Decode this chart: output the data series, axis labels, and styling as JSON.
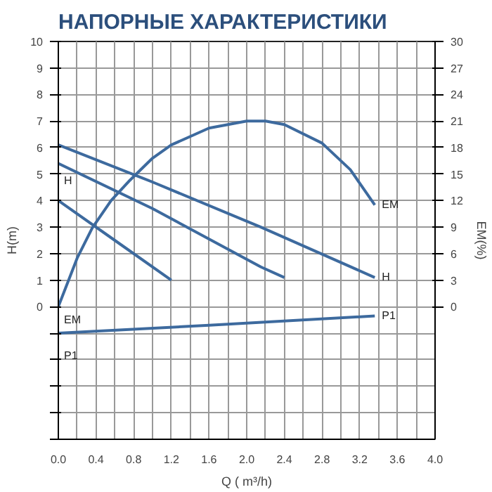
{
  "chart_data": {
    "type": "line",
    "title": "НАПОРНЫЕ ХАРАКТЕРИСТИКИ",
    "xlabel": "Q ( m³/h)",
    "ylabel": "H(m)",
    "y2label": "EM(%)",
    "xlim": [
      0,
      4
    ],
    "ylim": [
      -5,
      10
    ],
    "y2lim": [
      -15,
      30
    ],
    "xticks": [
      {
        "value": 0,
        "label": "0.0"
      },
      {
        "value": 0.2,
        "label": null
      },
      {
        "value": 0.4,
        "label": "0.4"
      },
      {
        "value": 0.6,
        "label": null
      },
      {
        "value": 0.8,
        "label": "0.8"
      },
      {
        "value": 1.0,
        "label": null
      },
      {
        "value": 1.2,
        "label": "1.2"
      },
      {
        "value": 1.4,
        "label": null
      },
      {
        "value": 1.6,
        "label": "1.6"
      },
      {
        "value": 1.8,
        "label": null
      },
      {
        "value": 2.0,
        "label": "2.0"
      },
      {
        "value": 2.2,
        "label": null
      },
      {
        "value": 2.4,
        "label": "2.4"
      },
      {
        "value": 2.6,
        "label": null
      },
      {
        "value": 2.8,
        "label": "2.8"
      },
      {
        "value": 3.0,
        "label": null
      },
      {
        "value": 3.2,
        "label": "3.2"
      },
      {
        "value": 3.4,
        "label": null
      },
      {
        "value": 3.6,
        "label": "3.6"
      },
      {
        "value": 3.8,
        "label": null
      },
      {
        "value": 4.0,
        "label": "4.0"
      }
    ],
    "yticks": [
      {
        "value": -5,
        "label": null
      },
      {
        "value": -4,
        "label": null
      },
      {
        "value": -3,
        "label": null
      },
      {
        "value": -2,
        "label": null
      },
      {
        "value": -1,
        "label": null
      },
      0,
      1,
      2,
      3,
      4,
      5,
      6,
      7,
      8,
      9,
      10
    ],
    "y2ticks": [
      0,
      3,
      6,
      9,
      12,
      15,
      18,
      21,
      24,
      27,
      30
    ],
    "grid": true,
    "marker": "none",
    "line_style": "solid",
    "series": [
      {
        "name": "EM",
        "color": "#3d6a9e",
        "axis": "y2",
        "x": [
          0,
          0.2,
          0.36,
          0.56,
          0.76,
          1.0,
          1.2,
          1.6,
          2.0,
          2.2,
          2.4,
          2.8,
          3.1,
          3.36
        ],
        "values": [
          0,
          5.5,
          8.9,
          12,
          14.3,
          16.8,
          18.3,
          20.2,
          21,
          21,
          20.6,
          18.5,
          15.5,
          11.5
        ]
      },
      {
        "name": "H",
        "color": "#3d6a9e",
        "x": [
          0,
          1.0,
          2.15,
          3.36
        ],
        "values": [
          6.1,
          4.7,
          3.0,
          1.1
        ]
      },
      {
        "color": "#3d6a9e",
        "x": [
          0,
          1.0,
          2.15,
          2.4
        ],
        "values": [
          5.4,
          3.7,
          1.5,
          1.1
        ]
      },
      {
        "color": "#3d6a9e",
        "x": [
          0,
          0.6,
          1.2
        ],
        "values": [
          4.0,
          2.5,
          1.0
        ]
      },
      {
        "name": "P1",
        "color": "#3d6a9e",
        "x": [
          0,
          1.6,
          3.36
        ],
        "values": [
          -1.0,
          -0.7,
          -0.35
        ]
      }
    ],
    "annotations": [
      "H",
      "EM",
      "P1"
    ]
  }
}
